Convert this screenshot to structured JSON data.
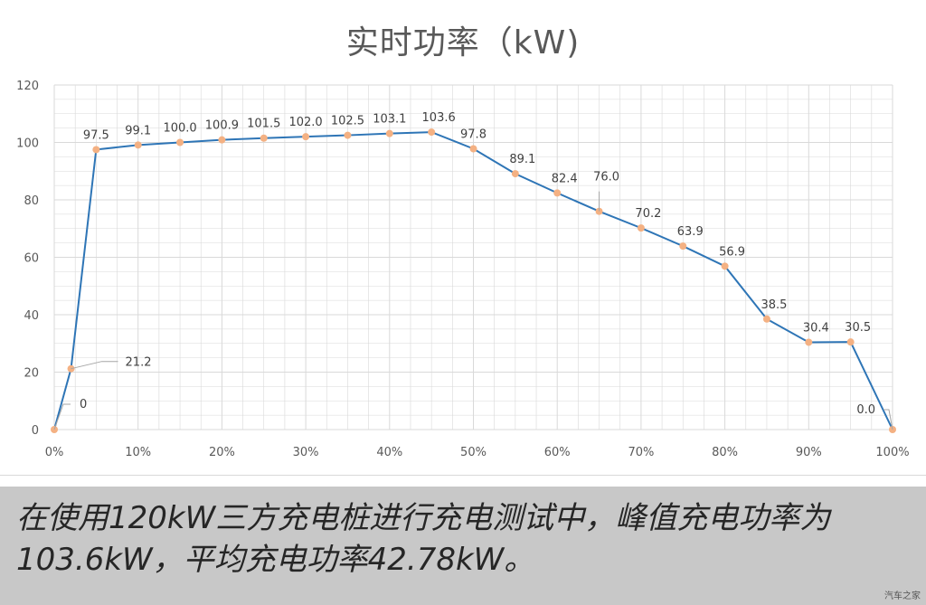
{
  "title": "实时功率（kW)",
  "caption": "在使用120kW三方充电桩进行充电测试中，峰值充电功率为103.6kW，平均充电功率42.78kW。",
  "watermark": "汽车之家",
  "colors": {
    "line": "#2e75b6",
    "marker": "#f4b183",
    "grid": "#d9d9d9",
    "caption_band": "#c8c8c8"
  },
  "chart_data": {
    "type": "line",
    "title": "实时功率（kW)",
    "xlabel": "",
    "ylabel": "",
    "xlim": [
      0,
      100
    ],
    "ylim": [
      0,
      120
    ],
    "grid": true,
    "x_ticks": [
      "0%",
      "10%",
      "20%",
      "30%",
      "40%",
      "50%",
      "60%",
      "70%",
      "80%",
      "90%",
      "100%"
    ],
    "y_ticks": [
      "0",
      "20",
      "40",
      "60",
      "80",
      "100",
      "120"
    ],
    "series": [
      {
        "x": [
          0,
          2,
          5,
          10,
          15,
          20,
          25,
          30,
          35,
          40,
          45,
          50,
          55,
          60,
          65,
          70,
          75,
          80,
          85,
          90,
          95,
          100
        ],
        "values": [
          0,
          21.2,
          97.5,
          99.1,
          100.0,
          100.9,
          101.5,
          102.0,
          102.5,
          103.1,
          103.6,
          97.8,
          89.1,
          82.4,
          76.0,
          70.2,
          63.9,
          56.9,
          38.5,
          30.4,
          30.5,
          0.0
        ],
        "labels": [
          "0",
          "21.2",
          "97.5",
          "99.1",
          "100.0",
          "100.9",
          "101.5",
          "102.0",
          "102.5",
          "103.1",
          "103.6",
          "97.8",
          "89.1",
          "82.4",
          "76.0",
          "70.2",
          "63.9",
          "56.9",
          "38.5",
          "30.4",
          "30.5",
          "0.0"
        ]
      }
    ]
  }
}
